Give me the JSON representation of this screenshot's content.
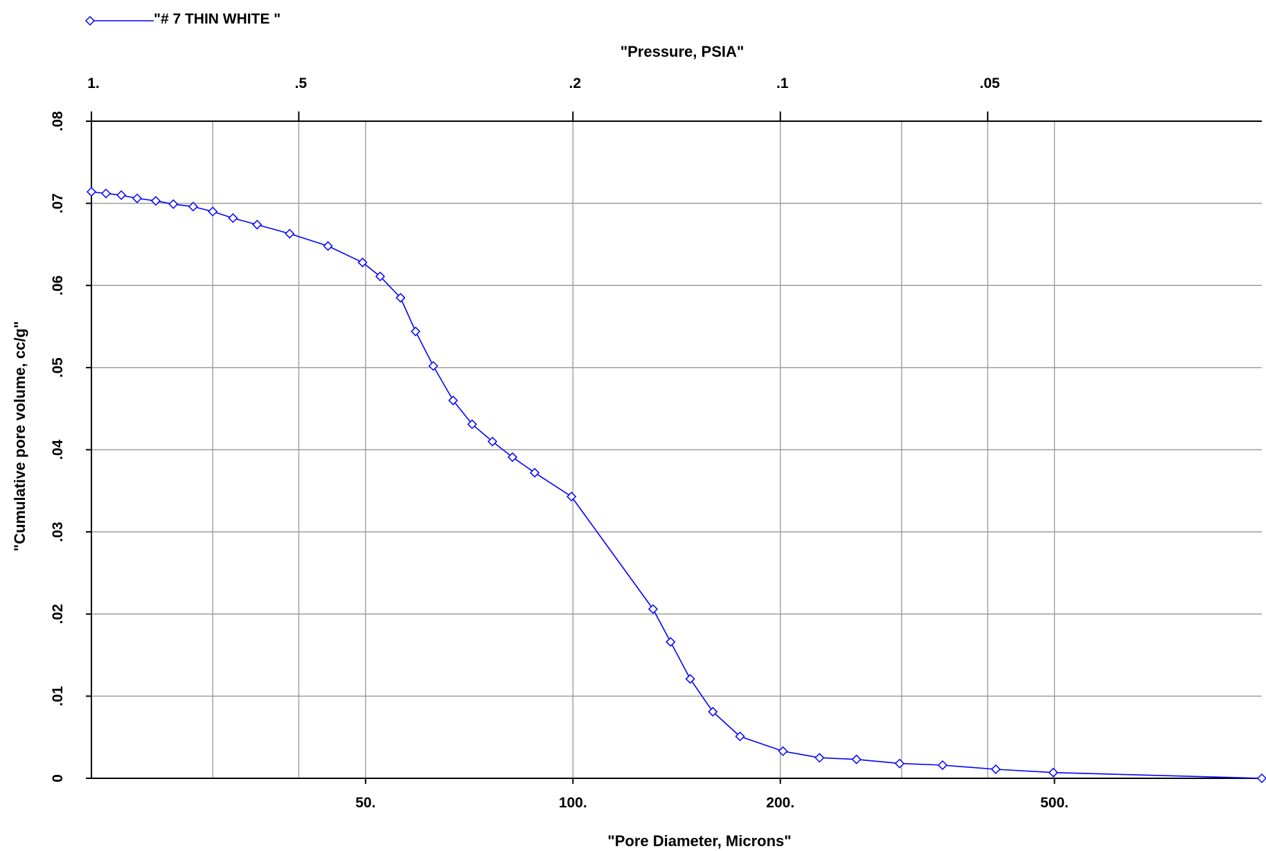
{
  "chart_data": {
    "type": "line",
    "legend": {
      "placement": "top-left",
      "entries": [
        {
          "label": "\"# 7 THIN WHITE \"",
          "marker": "diamond"
        }
      ]
    },
    "title": "",
    "x_top_label": "\"Pressure, PSIA\"",
    "xlabel": "\"Pore Diameter, Microns\"",
    "ylabel": "\"Cumulative pore volume, cc/g\"",
    "x_scale": "log",
    "xlim": [
      20,
      1000
    ],
    "ylim": [
      0,
      0.08
    ],
    "grid": true,
    "x_bottom_ticks": [
      {
        "value": 50,
        "label": "50."
      },
      {
        "value": 100,
        "label": "100."
      },
      {
        "value": 200,
        "label": "200."
      },
      {
        "value": 500,
        "label": "500."
      }
    ],
    "x_minor_grid": [
      30,
      40,
      50,
      100,
      200,
      300,
      400,
      500
    ],
    "x_top_ticks": [
      {
        "value": 20,
        "label": "1."
      },
      {
        "value": 40,
        "label": ".5"
      },
      {
        "value": 100,
        "label": ".2"
      },
      {
        "value": 200,
        "label": ".1"
      },
      {
        "value": 400,
        "label": ".05"
      }
    ],
    "y_ticks": [
      {
        "value": 0,
        "label": "0"
      },
      {
        "value": 0.01,
        "label": ".01"
      },
      {
        "value": 0.02,
        "label": ".02"
      },
      {
        "value": 0.03,
        "label": ".03"
      },
      {
        "value": 0.04,
        "label": ".04"
      },
      {
        "value": 0.05,
        "label": ".05"
      },
      {
        "value": 0.06,
        "label": ".06"
      },
      {
        "value": 0.07,
        "label": ".07"
      },
      {
        "value": 0.08,
        "label": ".08"
      }
    ],
    "series": [
      {
        "name": "\"# 7 THIN WHITE \"",
        "color": "#0000ff",
        "x": [
          20.0,
          21.0,
          22.1,
          23.3,
          24.8,
          26.3,
          28.1,
          30.0,
          32.1,
          34.8,
          38.8,
          44.1,
          49.5,
          52.5,
          56.2,
          59.1,
          62.7,
          67.0,
          71.4,
          76.4,
          81.7,
          88.0,
          99.5,
          130.7,
          138.6,
          148.0,
          159.6,
          174.8,
          201.8,
          228.0,
          258.0,
          298.0,
          344.0,
          411.0,
          498.0,
          1000.0
        ],
        "y": [
          0.0714,
          0.0712,
          0.071,
          0.0706,
          0.0703,
          0.0699,
          0.0696,
          0.069,
          0.0682,
          0.0674,
          0.0663,
          0.0648,
          0.0628,
          0.0611,
          0.0585,
          0.0544,
          0.0502,
          0.046,
          0.0431,
          0.041,
          0.0391,
          0.0372,
          0.0343,
          0.0206,
          0.0166,
          0.0121,
          0.0081,
          0.0051,
          0.0033,
          0.0025,
          0.0023,
          0.0018,
          0.0016,
          0.0011,
          0.0007,
          0.0
        ]
      }
    ]
  }
}
